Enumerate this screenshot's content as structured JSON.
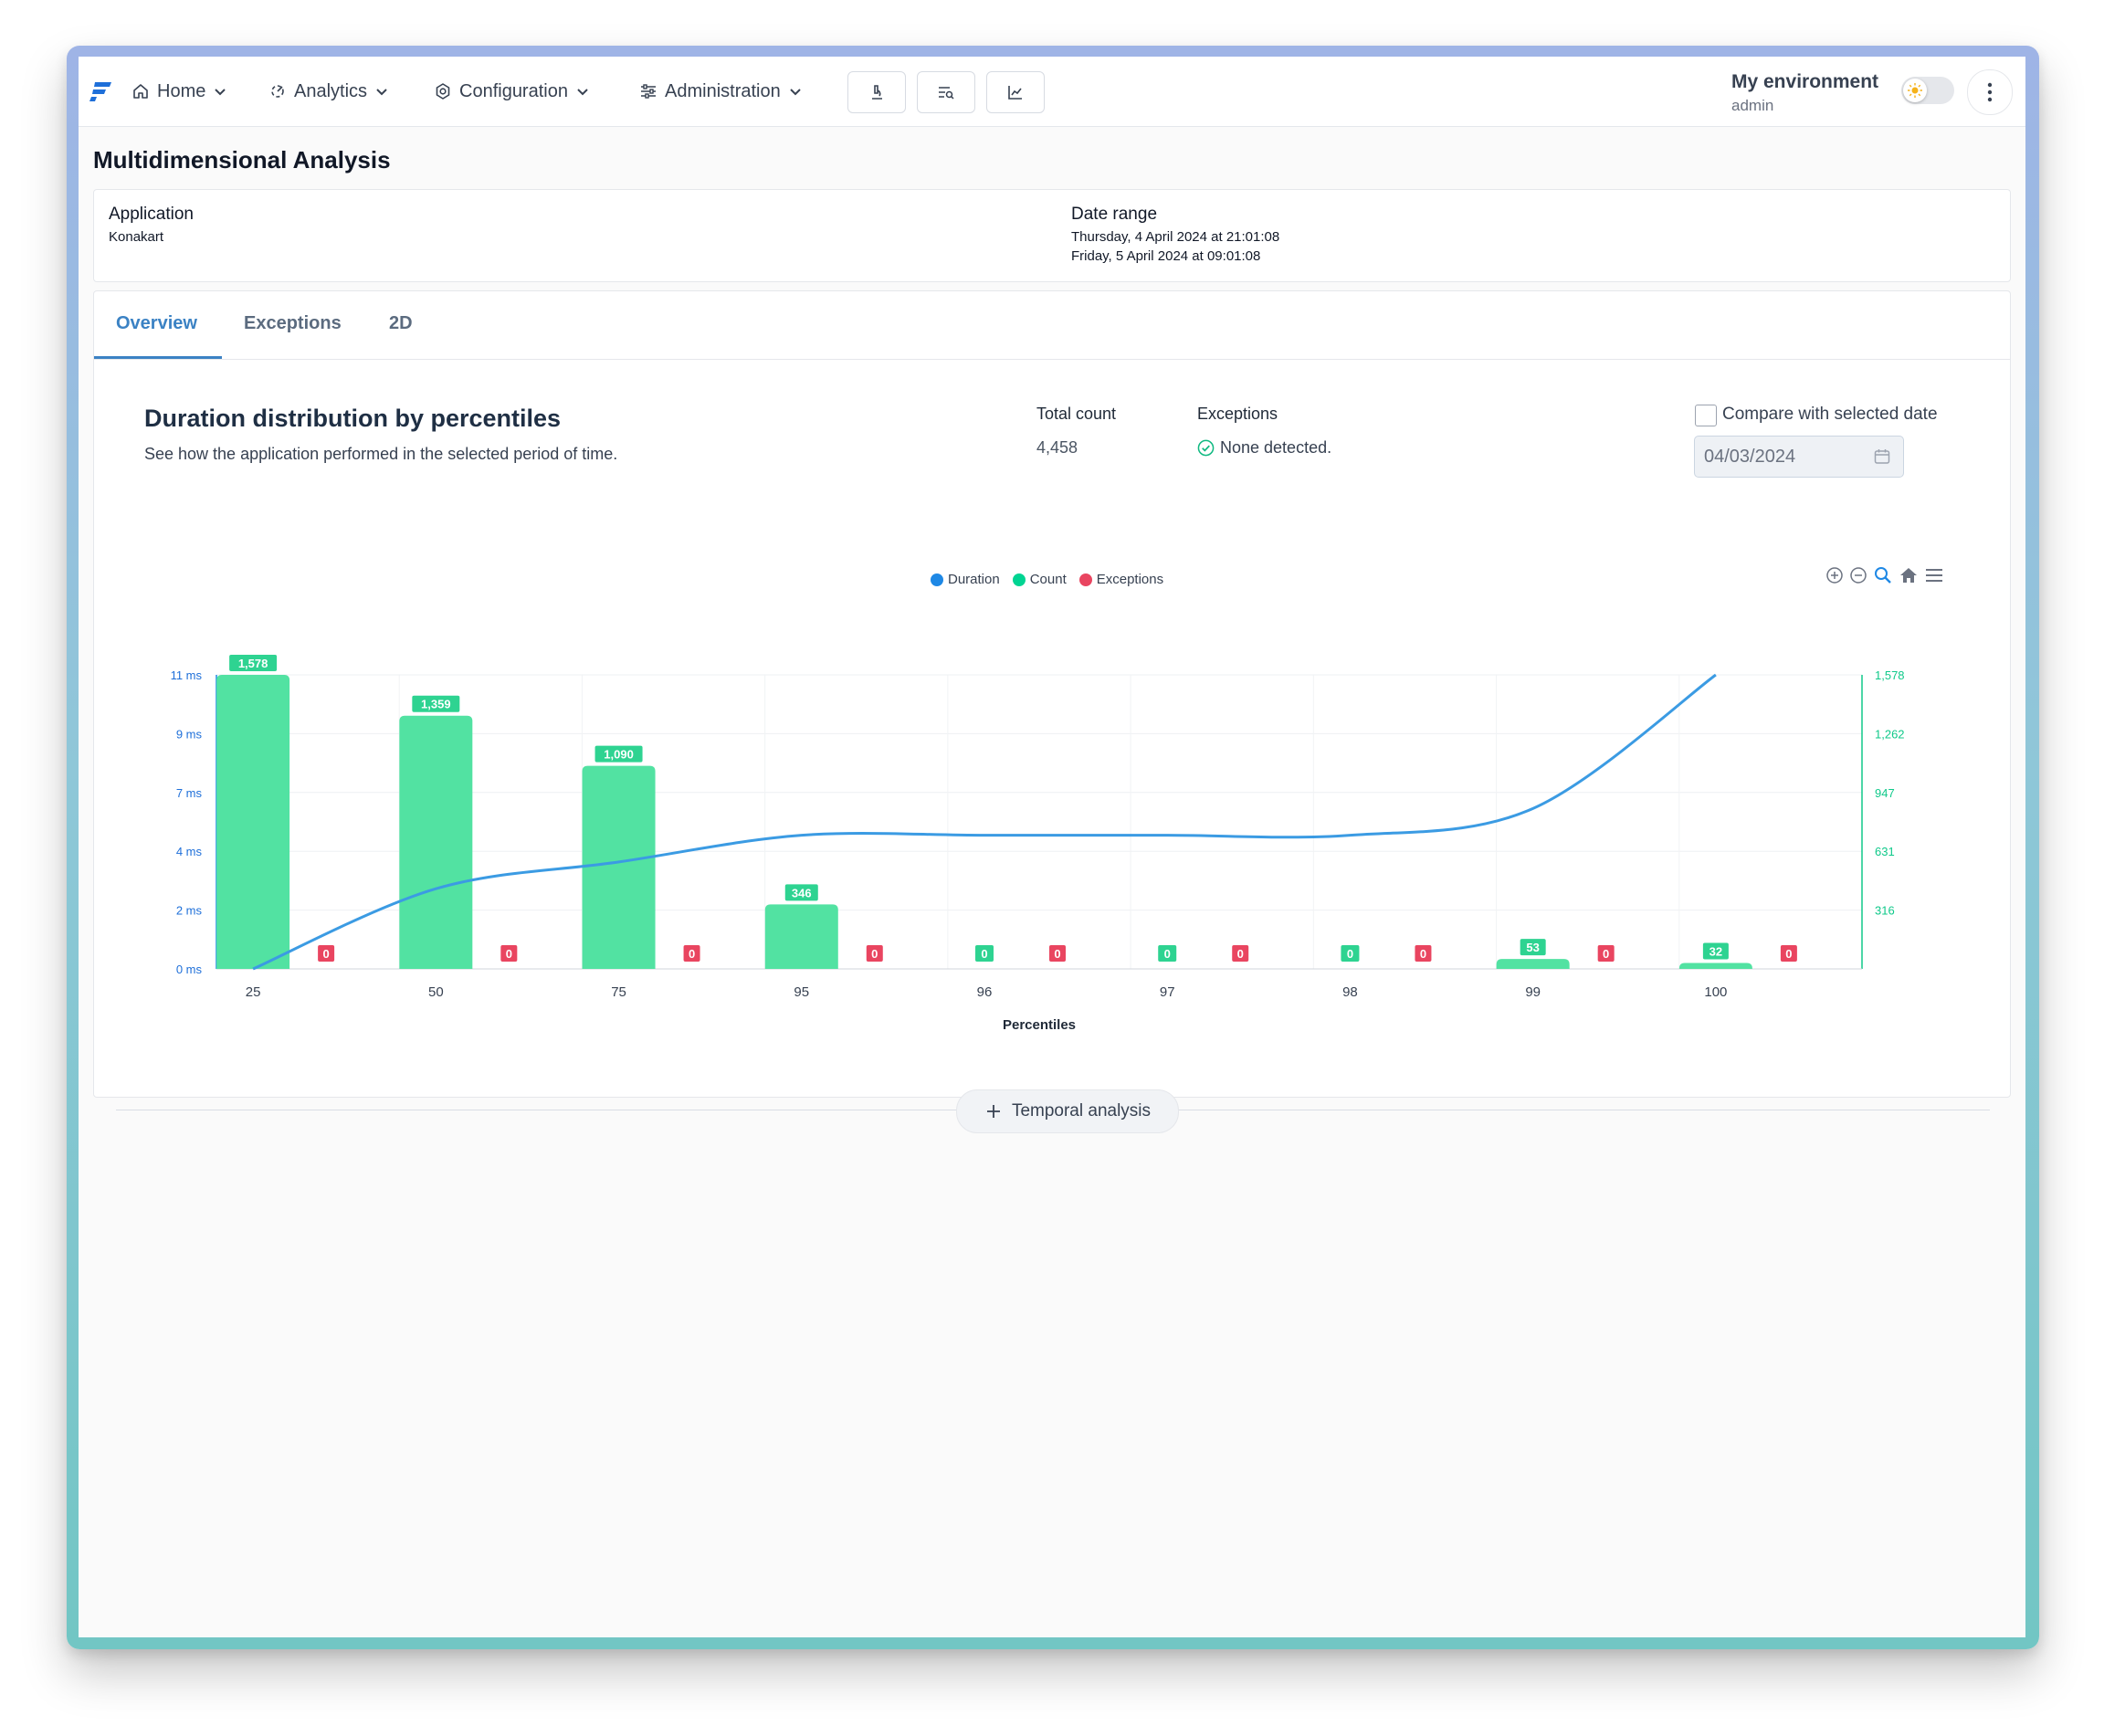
{
  "nav": {
    "items": [
      {
        "label": "Home",
        "icon": "home-icon"
      },
      {
        "label": "Analytics",
        "icon": "analytics-icon"
      },
      {
        "label": "Configuration",
        "icon": "gear-icon"
      },
      {
        "label": "Administration",
        "icon": "sliders-icon"
      }
    ],
    "tools": [
      "microscope-icon",
      "search-list-icon",
      "line-chart-icon"
    ],
    "environment": "My environment",
    "user": "admin"
  },
  "page": {
    "title": "Multidimensional Analysis"
  },
  "info": {
    "application_label": "Application",
    "application_value": "Konakart",
    "date_range_label": "Date range",
    "date_start": "Thursday, 4 April 2024 at 21:01:08",
    "date_end": "Friday, 5 April 2024 at 09:01:08"
  },
  "tabs": [
    "Overview",
    "Exceptions",
    "2D"
  ],
  "section": {
    "title": "Duration distribution by percentiles",
    "subtitle": "See how the application performed in the selected period of time.",
    "total_count_label": "Total count",
    "total_count_value": "4,458",
    "exceptions_label": "Exceptions",
    "exceptions_value": "None detected.",
    "compare_label": "Compare with selected date",
    "compare_date": "04/03/2024",
    "temporal_button": "Temporal analysis"
  },
  "colors": {
    "duration": "#1e88e5",
    "count": "#52e2a2",
    "exceptions": "#e94560",
    "accent": "#3b82c4"
  },
  "chart_data": {
    "type": "bar",
    "categories": [
      "25",
      "50",
      "75",
      "95",
      "96",
      "97",
      "98",
      "99",
      "100"
    ],
    "xlabel": "Percentiles",
    "y_left_ticks": [
      "0 ms",
      "2 ms",
      "4 ms",
      "7 ms",
      "9 ms",
      "11 ms"
    ],
    "y_right_ticks": [
      "316",
      "631",
      "947",
      "1,262",
      "1,578"
    ],
    "y_right_max": 1578,
    "y_left_max": 11,
    "legend": [
      "Duration",
      "Count",
      "Exceptions"
    ],
    "series": [
      {
        "name": "Count",
        "type": "bar",
        "values": [
          1578,
          1359,
          1090,
          346,
          0,
          0,
          0,
          53,
          32
        ],
        "labels": [
          "1,578",
          "1,359",
          "1,090",
          "346",
          "0",
          "0",
          "0",
          "53",
          "32"
        ]
      },
      {
        "name": "Exceptions",
        "type": "bar",
        "values": [
          0,
          0,
          0,
          0,
          0,
          0,
          0,
          0,
          0
        ],
        "labels": [
          "0",
          "0",
          "0",
          "0",
          "0",
          "0",
          "0",
          "0",
          "0"
        ]
      },
      {
        "name": "Duration",
        "type": "line",
        "values": [
          0,
          3,
          4,
          5,
          5,
          5,
          5,
          6,
          11
        ]
      }
    ]
  }
}
